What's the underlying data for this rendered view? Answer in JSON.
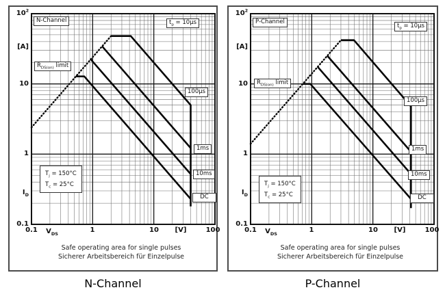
{
  "colors": {
    "grid_minor": "#6a6a6a",
    "grid_major": "#161616",
    "frame": "#111111",
    "curve": "#070707",
    "figure_border": "#4a4a4a"
  },
  "figures": [
    {
      "title_box": "N-Channel",
      "tp_label": {
        "base": "t",
        "sub": "p",
        "rest": " = 10µs"
      },
      "r_label": {
        "base": "R",
        "sub": "DS(on)",
        "rest": " limit"
      },
      "temp_line1": {
        "base": "T",
        "sub": "j",
        "rest": " = 150°C"
      },
      "temp_line2": {
        "base": "T",
        "sub": "c",
        "rest": " = 25°C"
      },
      "curve_labels": [
        "100µs",
        "1ms",
        "10ms",
        "DC"
      ],
      "y_axis": {
        "top_tick": {
          "base": "10",
          "sup": "2"
        },
        "unit": "[A]",
        "ticks": [
          "10",
          "1",
          "0.1"
        ],
        "quantity": {
          "base": "I",
          "sub": "D"
        }
      },
      "x_axis": {
        "ticks": [
          "0.1",
          "1",
          "10",
          "100"
        ],
        "quantity": {
          "base": "V",
          "sub": "DS"
        },
        "unit": "[V]"
      },
      "caption_line1": "Safe operating area for single pulses",
      "caption_line2": "Sicherer Arbeitsbereich für Einzelpulse",
      "bottom_label": "N-Channel"
    },
    {
      "title_box": "P-Channel",
      "tp_label": {
        "base": "t",
        "sub": "p",
        "rest": " = 10µs"
      },
      "r_label": {
        "base": "R",
        "sub": "DS(on)",
        "rest": " limit"
      },
      "temp_line1": {
        "base": "T",
        "sub": "j",
        "rest": " = 150°C"
      },
      "temp_line2": {
        "base": "T",
        "sub": "c",
        "rest": " = 25°C"
      },
      "curve_labels": [
        "100µs",
        "1ms",
        "10ms",
        "DC"
      ],
      "y_axis": {
        "top_tick": {
          "base": "10",
          "sup": "2"
        },
        "unit": "[A]",
        "ticks": [
          "10",
          "1",
          "0.1"
        ],
        "quantity": {
          "base": "I",
          "sub": "D"
        }
      },
      "x_axis": {
        "ticks": [
          "0.1",
          "1",
          "10",
          "100"
        ],
        "quantity": {
          "base": "V",
          "sub": "DS"
        },
        "unit": "[V]"
      },
      "caption_line1": "Safe operating area for single pulses",
      "caption_line2": "Sicherer Arbeitsbereich für Einzelpulse",
      "bottom_label": "P-Channel"
    }
  ],
  "chart_data": [
    {
      "type": "line",
      "title": "N-Channel safe operating area (single pulses)",
      "scale": "log-log",
      "xlabel": "VDS [V]",
      "ylabel": "ID [A]",
      "xlim": [
        0.1,
        100
      ],
      "ylim": [
        0.1,
        100
      ],
      "grid": "on",
      "annotation": "tp = 10µs",
      "series": [
        {
          "name": "RDS(on) limit",
          "style": "dotted",
          "points": [
            [
              0.1,
              2.4
            ],
            [
              2.0,
              48
            ]
          ]
        },
        {
          "name": "100µs",
          "style": "solid",
          "points": [
            [
              2.0,
              48
            ],
            [
              4.2,
              48
            ],
            [
              40,
              5.0
            ],
            [
              40,
              0.18
            ]
          ]
        },
        {
          "name": "1ms",
          "style": "solid",
          "points": [
            [
              1.43,
              34.3
            ],
            [
              40,
              1.22
            ]
          ]
        },
        {
          "name": "10ms",
          "style": "solid",
          "points": [
            [
              0.93,
              22.4
            ],
            [
              40,
              0.52
            ]
          ]
        },
        {
          "name": "DC",
          "style": "solid",
          "points": [
            [
              0.53,
              12.8
            ],
            [
              0.73,
              12.8
            ],
            [
              40,
              0.23
            ]
          ]
        }
      ]
    },
    {
      "type": "line",
      "title": "P-Channel safe operating area (single pulses)",
      "scale": "log-log",
      "xlabel": "VDS [V]",
      "ylabel": "ID [A]",
      "xlim": [
        0.1,
        100
      ],
      "ylim": [
        0.1,
        100
      ],
      "grid": "on",
      "annotation": "tp = 10µs",
      "series": [
        {
          "name": "RDS(on) limit",
          "style": "dotted",
          "points": [
            [
              0.1,
              1.4
            ],
            [
              3.0,
              42
            ]
          ]
        },
        {
          "name": "100µs",
          "style": "solid",
          "points": [
            [
              3.0,
              42
            ],
            [
              4.9,
              42
            ],
            [
              42,
              4.8
            ],
            [
              42,
              0.17
            ]
          ]
        },
        {
          "name": "1ms",
          "style": "solid",
          "points": [
            [
              1.8,
              25.2
            ],
            [
              42,
              1.08
            ]
          ]
        },
        {
          "name": "10ms",
          "style": "solid",
          "points": [
            [
              1.25,
              17.5
            ],
            [
              42,
              0.52
            ]
          ]
        },
        {
          "name": "DC",
          "style": "solid",
          "points": [
            [
              0.72,
              10
            ],
            [
              0.95,
              10
            ],
            [
              42,
              0.23
            ]
          ]
        }
      ]
    }
  ]
}
